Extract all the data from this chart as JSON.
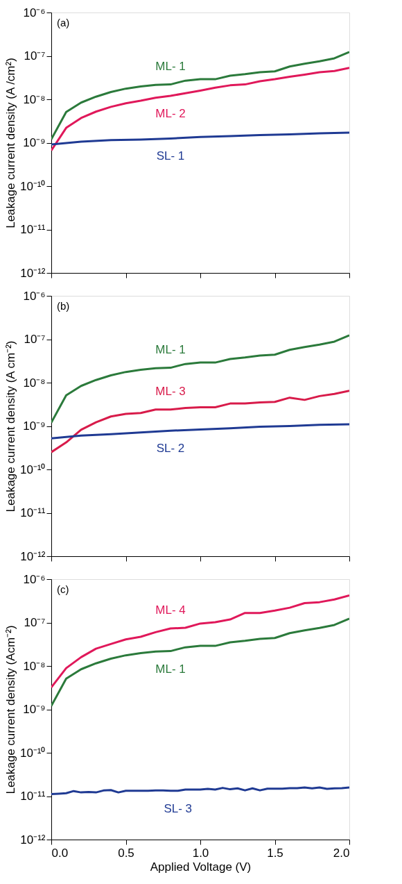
{
  "chart_data": [
    {
      "type": "line",
      "ylabel": "Leakage current density (A /cm²)",
      "annotations": [
        "(a)"
      ],
      "tick_labels": "y",
      "log": "y",
      "xlim": [
        0,
        2
      ],
      "xticks": [
        0,
        0.5,
        1,
        1.5,
        2
      ],
      "ylim": [
        1e-12,
        1e-06
      ],
      "yticks": [
        {
          "value": 1e-12,
          "label": "10⁻¹²"
        },
        {
          "value": 1e-11,
          "label": "10⁻¹¹"
        },
        {
          "value": 1e-10,
          "label": "10⁻¹⁰"
        },
        {
          "value": 1e-09,
          "label": "10⁻⁹"
        },
        {
          "value": 1e-08,
          "label": "10⁻⁸"
        },
        {
          "value": 1e-07,
          "label": "10⁻⁷"
        },
        {
          "value": 1e-06,
          "label": "10⁻⁶"
        }
      ],
      "series": [
        {
          "name": "ML- 1",
          "color": "#2b7a3b",
          "x": [
            0,
            0.1,
            0.2,
            0.3,
            0.4,
            0.5,
            0.6,
            0.7,
            0.8,
            0.9,
            1.0,
            1.1,
            1.2,
            1.3,
            1.4,
            1.5,
            1.6,
            1.7,
            1.8,
            1.9,
            2.0
          ],
          "values": [
            1.2e-09,
            5.1e-09,
            8.4e-09,
            1.15e-08,
            1.47e-08,
            1.76e-08,
            1.97e-08,
            2.14e-08,
            2.2e-08,
            2.69e-08,
            2.9e-08,
            2.9e-08,
            3.5e-08,
            3.8e-08,
            4.2e-08,
            4.4e-08,
            5.7e-08,
            6.6e-08,
            7.5e-08,
            8.8e-08,
            1.23e-07
          ]
        },
        {
          "name": "ML- 2",
          "color": "#e0185a",
          "x": [
            0,
            0.1,
            0.2,
            0.3,
            0.4,
            0.5,
            0.6,
            0.7,
            0.8,
            0.9,
            1.0,
            1.1,
            1.2,
            1.3,
            1.4,
            1.5,
            1.6,
            1.7,
            1.8,
            1.9,
            2.0
          ],
          "values": [
            6.6e-10,
            2.2e-09,
            3.7e-09,
            5.2e-09,
            6.7e-09,
            8.1e-09,
            9.3e-09,
            1.09e-08,
            1.2e-08,
            1.38e-08,
            1.59e-08,
            1.86e-08,
            2.1e-08,
            2.2e-08,
            2.6e-08,
            2.9e-08,
            3.3e-08,
            3.7e-08,
            4.2e-08,
            4.5e-08,
            5.3e-08
          ]
        },
        {
          "name": "SL- 1",
          "color": "#1f3a93",
          "x": [
            0,
            0.2,
            0.4,
            0.6,
            0.8,
            1.0,
            1.2,
            1.4,
            1.6,
            1.8,
            2.0
          ],
          "values": [
            9.1e-10,
            1.06e-09,
            1.15e-09,
            1.18e-09,
            1.25e-09,
            1.35e-09,
            1.42e-09,
            1.5e-09,
            1.55e-09,
            1.64e-09,
            1.71e-09
          ]
        }
      ]
    },
    {
      "type": "line",
      "ylabel": "Leakage current density (A cm⁻²)",
      "annotations": [
        "(b)"
      ],
      "tick_labels": "y",
      "log": "y",
      "xlim": [
        0,
        2
      ],
      "xticks": [
        0,
        0.5,
        1,
        1.5,
        2
      ],
      "ylim": [
        1e-12,
        1e-06
      ],
      "yticks": [
        {
          "value": 1e-12,
          "label": "10⁻¹²"
        },
        {
          "value": 1e-11,
          "label": "10⁻¹¹"
        },
        {
          "value": 1e-10,
          "label": "10⁻¹⁰"
        },
        {
          "value": 1e-09,
          "label": "10⁻⁹"
        },
        {
          "value": 1e-08,
          "label": "10⁻⁸"
        },
        {
          "value": 1e-07,
          "label": "10⁻⁷"
        },
        {
          "value": 1e-06,
          "label": "10⁻⁶"
        }
      ],
      "series": [
        {
          "name": "ML- 1",
          "color": "#2b7a3b",
          "x": [
            0,
            0.1,
            0.2,
            0.3,
            0.4,
            0.5,
            0.6,
            0.7,
            0.8,
            0.9,
            1.0,
            1.1,
            1.2,
            1.3,
            1.4,
            1.5,
            1.6,
            1.7,
            1.8,
            1.9,
            2.0
          ],
          "values": [
            1.2e-09,
            5.1e-09,
            8.4e-09,
            1.15e-08,
            1.47e-08,
            1.76e-08,
            1.97e-08,
            2.14e-08,
            2.2e-08,
            2.69e-08,
            2.9e-08,
            2.9e-08,
            3.5e-08,
            3.8e-08,
            4.2e-08,
            4.4e-08,
            5.7e-08,
            6.6e-08,
            7.5e-08,
            8.8e-08,
            1.23e-07
          ]
        },
        {
          "name": "ML- 3",
          "color": "#d81b4a",
          "x": [
            0,
            0.1,
            0.2,
            0.3,
            0.4,
            0.5,
            0.6,
            0.7,
            0.8,
            0.9,
            1.0,
            1.1,
            1.2,
            1.3,
            1.4,
            1.5,
            1.6,
            1.7,
            1.8,
            1.9,
            2.0
          ],
          "values": [
            2.5e-10,
            4.2e-10,
            8.2e-10,
            1.22e-09,
            1.66e-09,
            1.9e-09,
            2e-09,
            2.4e-09,
            2.4e-09,
            2.6e-09,
            2.7e-09,
            2.7e-09,
            3.3e-09,
            3.3e-09,
            3.5e-09,
            3.6e-09,
            4.5e-09,
            4e-09,
            4.9e-09,
            5.5e-09,
            6.5e-09
          ]
        },
        {
          "name": "SL- 2",
          "color": "#1f3a93",
          "x": [
            0,
            0.2,
            0.4,
            0.6,
            0.8,
            1.0,
            1.2,
            1.4,
            1.6,
            1.8,
            2.0
          ],
          "values": [
            5.2e-10,
            6e-10,
            6.5e-10,
            7.1e-10,
            7.8e-10,
            8.3e-10,
            8.9e-10,
            9.6e-10,
            1e-09,
            1.07e-09,
            1.1e-09
          ]
        }
      ]
    },
    {
      "type": "line",
      "ylabel": "Leakage current density (Acm⁻²)",
      "xlabel": "Applied Voltage (V)",
      "annotations": [
        "(c)"
      ],
      "log": "y",
      "xlim": [
        0,
        2
      ],
      "xticks": [
        {
          "value": 0,
          "label": "0.0"
        },
        {
          "value": 0.5,
          "label": "0.5"
        },
        {
          "value": 1,
          "label": "1.0"
        },
        {
          "value": 1.5,
          "label": "1.5"
        },
        {
          "value": 2,
          "label": "2.0"
        }
      ],
      "ylim": [
        1e-12,
        1e-06
      ],
      "yticks": [
        {
          "value": 1e-12,
          "label": "10⁻¹²"
        },
        {
          "value": 1e-11,
          "label": "10⁻¹¹"
        },
        {
          "value": 1e-10,
          "label": "10⁻¹⁰"
        },
        {
          "value": 1e-09,
          "label": "10⁻⁹"
        },
        {
          "value": 1e-08,
          "label": "10⁻⁸"
        },
        {
          "value": 1e-07,
          "label": "10⁻⁷"
        },
        {
          "value": 1e-06,
          "label": "10⁻⁶"
        }
      ],
      "series": [
        {
          "name": "ML- 4",
          "color": "#e0185a",
          "x": [
            0,
            0.1,
            0.2,
            0.3,
            0.4,
            0.5,
            0.6,
            0.7,
            0.8,
            0.9,
            1.0,
            1.1,
            1.2,
            1.3,
            1.4,
            1.5,
            1.6,
            1.7,
            1.8,
            1.9,
            2.0
          ],
          "values": [
            3.2e-09,
            8.9e-09,
            1.59e-08,
            2.5e-08,
            3.2e-08,
            4.1e-08,
            4.7e-08,
            6e-08,
            7.3e-08,
            7.6e-08,
            9.5e-08,
            1.02e-07,
            1.18e-07,
            1.66e-07,
            1.66e-07,
            1.89e-07,
            2.2e-07,
            2.8e-07,
            2.95e-07,
            3.4e-07,
            4.2e-07
          ]
        },
        {
          "name": "ML- 1",
          "color": "#2b7a3b",
          "x": [
            0,
            0.1,
            0.2,
            0.3,
            0.4,
            0.5,
            0.6,
            0.7,
            0.8,
            0.9,
            1.0,
            1.1,
            1.2,
            1.3,
            1.4,
            1.5,
            1.6,
            1.7,
            1.8,
            1.9,
            2.0
          ],
          "values": [
            1.2e-09,
            5.1e-09,
            8.4e-09,
            1.15e-08,
            1.47e-08,
            1.76e-08,
            1.97e-08,
            2.14e-08,
            2.2e-08,
            2.69e-08,
            2.9e-08,
            2.9e-08,
            3.5e-08,
            3.8e-08,
            4.2e-08,
            4.4e-08,
            5.7e-08,
            6.6e-08,
            7.5e-08,
            8.8e-08,
            1.23e-07
          ]
        },
        {
          "name": "SL- 3",
          "color": "#1f3a93",
          "x": [
            0,
            0.05,
            0.1,
            0.15,
            0.2,
            0.25,
            0.3,
            0.35,
            0.4,
            0.45,
            0.5,
            0.55,
            0.6,
            0.65,
            0.7,
            0.75,
            0.8,
            0.85,
            0.9,
            0.95,
            1.0,
            1.05,
            1.1,
            1.15,
            1.2,
            1.25,
            1.3,
            1.35,
            1.4,
            1.45,
            1.5,
            1.55,
            1.6,
            1.65,
            1.7,
            1.75,
            1.8,
            1.85,
            1.9,
            1.95,
            2.0
          ],
          "values": [
            1.12e-11,
            1.14e-11,
            1.17e-11,
            1.31e-11,
            1.22e-11,
            1.25e-11,
            1.22e-11,
            1.35e-11,
            1.38e-11,
            1.22e-11,
            1.33e-11,
            1.33e-11,
            1.33e-11,
            1.33e-11,
            1.35e-11,
            1.36e-11,
            1.33e-11,
            1.33e-11,
            1.42e-11,
            1.42e-11,
            1.42e-11,
            1.47e-11,
            1.42e-11,
            1.55e-11,
            1.44e-11,
            1.51e-11,
            1.36e-11,
            1.51e-11,
            1.36e-11,
            1.49e-11,
            1.49e-11,
            1.49e-11,
            1.53e-11,
            1.53e-11,
            1.59e-11,
            1.51e-11,
            1.59e-11,
            1.47e-11,
            1.51e-11,
            1.53e-11,
            1.59e-11
          ]
        }
      ]
    }
  ]
}
